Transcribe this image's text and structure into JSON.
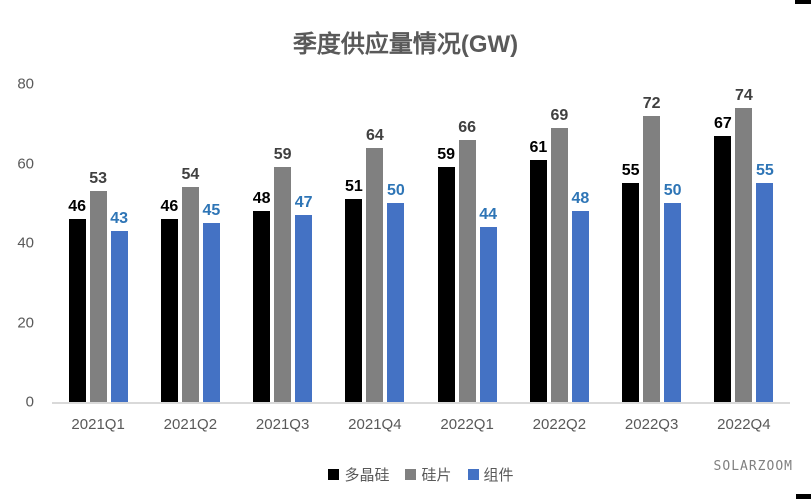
{
  "title": "季度供应量情况(GW)",
  "watermark": "SOLARZOOM",
  "colors": {
    "title_text": "#595959",
    "axis_text": "#595959",
    "axis_line": "#D9D9D9",
    "background": "#FFFFFF",
    "corner_marks": "#000000"
  },
  "chart_data": {
    "type": "bar",
    "title": "季度供应量情况(GW)",
    "categories": [
      "2021Q1",
      "2021Q2",
      "2021Q3",
      "2021Q4",
      "2022Q1",
      "2022Q2",
      "2022Q3",
      "2022Q4"
    ],
    "series": [
      {
        "key": "polysilicon",
        "name": "多晶硅",
        "color": "#000000",
        "label_color": "#000000",
        "values": [
          46,
          46,
          48,
          51,
          59,
          61,
          55,
          67
        ]
      },
      {
        "key": "wafer",
        "name": "硅片",
        "color": "#808080",
        "label_color": "#404040",
        "values": [
          53,
          54,
          59,
          64,
          66,
          69,
          72,
          74
        ]
      },
      {
        "key": "module",
        "name": "组件",
        "color": "#4472C4",
        "label_color": "#2E75B6",
        "values": [
          43,
          45,
          47,
          50,
          44,
          48,
          50,
          55
        ]
      }
    ],
    "xlabel": "",
    "ylabel": "",
    "ylim": [
      0,
      80
    ],
    "y_ticks": [
      0,
      20,
      40,
      60,
      80
    ],
    "grid": false,
    "value_labels": true,
    "legend_position": "bottom"
  }
}
